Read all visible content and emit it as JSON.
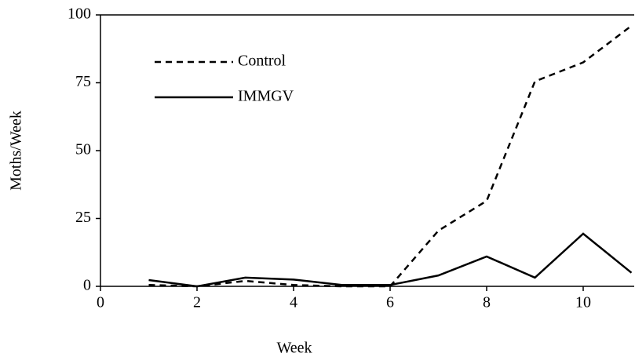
{
  "chart_data": {
    "type": "line",
    "x_label": "Week",
    "y_label": "Moths/Week",
    "x": [
      1,
      2,
      3,
      4,
      5,
      6,
      7,
      8,
      9,
      10,
      11
    ],
    "series": [
      {
        "name": "Control",
        "color": "#000000",
        "style": "dashed",
        "values": [
          0.5,
          0,
          2,
          0.5,
          0,
          0,
          20.5,
          31.5,
          75.5,
          82.5,
          96
        ]
      },
      {
        "name": "IMMGV",
        "color": "#000000",
        "style": "solid",
        "values": [
          2.3,
          0,
          3.2,
          2.5,
          0.5,
          0.5,
          4,
          11,
          3.2,
          19.4,
          5
        ]
      }
    ],
    "xlim": [
      0,
      11
    ],
    "xticks": [
      0,
      2,
      4,
      6,
      8,
      10
    ],
    "ylim": [
      0,
      100
    ],
    "yticks": [
      0,
      25,
      50,
      75,
      100
    ],
    "grid": false,
    "legend": "top-left"
  }
}
